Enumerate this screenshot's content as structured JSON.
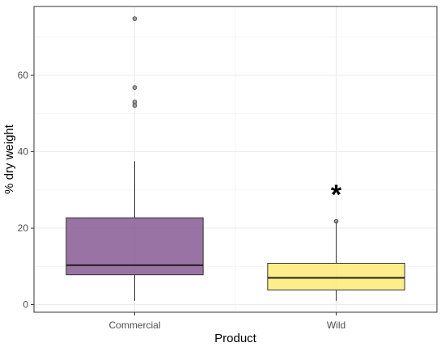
{
  "chart_data": {
    "type": "box",
    "xlabel": "Product",
    "ylabel": "% dry weight",
    "categories": [
      "Commercial",
      "Wild"
    ],
    "ylim": [
      -2,
      78
    ],
    "yticks": [
      0,
      20,
      40,
      60
    ],
    "y_tick_labels": [
      "0",
      "20",
      "40",
      "60"
    ],
    "grid": true,
    "legend": "none",
    "boxes": [
      {
        "category": "Commercial",
        "whisker_low": 1,
        "q1": 7.8,
        "median": 10.3,
        "q3": 22.7,
        "whisker_high": 37.5,
        "outliers": [
          52.1,
          53,
          56.8,
          74.8
        ],
        "fill": "#7b4b8a"
      },
      {
        "category": "Wild",
        "whisker_low": 1,
        "q1": 3.8,
        "median": 7,
        "q3": 10.8,
        "whisker_high": 21.8,
        "outliers": [
          21.8
        ],
        "fill": "#fce96a"
      }
    ],
    "annotations": [
      {
        "category": "Wild",
        "text": "*",
        "y": 31
      }
    ]
  }
}
